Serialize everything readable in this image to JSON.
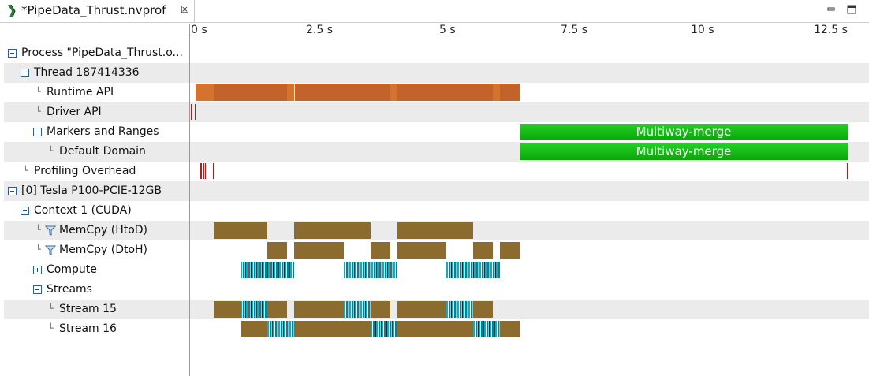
{
  "tab": {
    "title": "*PipeData_Thrust.nvprof",
    "close_symbol": "☒"
  },
  "window": {
    "minimize_icon": "minimize-icon",
    "maximize_icon": "maximize-icon"
  },
  "axis": {
    "ticks": [
      "0 s",
      "2.5 s",
      "5 s",
      "7.5 s",
      "10 s",
      "12.5 s"
    ]
  },
  "tree": {
    "process": "Process \"PipeData_Thrust.o...",
    "thread": "Thread 187414336",
    "runtime_api": "Runtime API",
    "driver_api": "Driver API",
    "markers": "Markers and Ranges",
    "default_domain": "Default Domain",
    "profiling_overhead": "Profiling Overhead",
    "device": "[0] Tesla P100-PCIE-12GB",
    "context": "Context 1 (CUDA)",
    "memcpy_htod": "MemCpy (HtoD)",
    "memcpy_dtoh": "MemCpy (DtoH)",
    "compute": "Compute",
    "streams": "Streams",
    "stream15": "Stream 15",
    "stream16": "Stream 16"
  },
  "ranges": {
    "multiway_merge": "Multiway-merge"
  },
  "colors": {
    "runtime": "#c1632a",
    "memcpy": "#8c6b2f",
    "marker": "#12b812",
    "overhead": "#c01818",
    "kernel": "#1aa7b8"
  }
}
